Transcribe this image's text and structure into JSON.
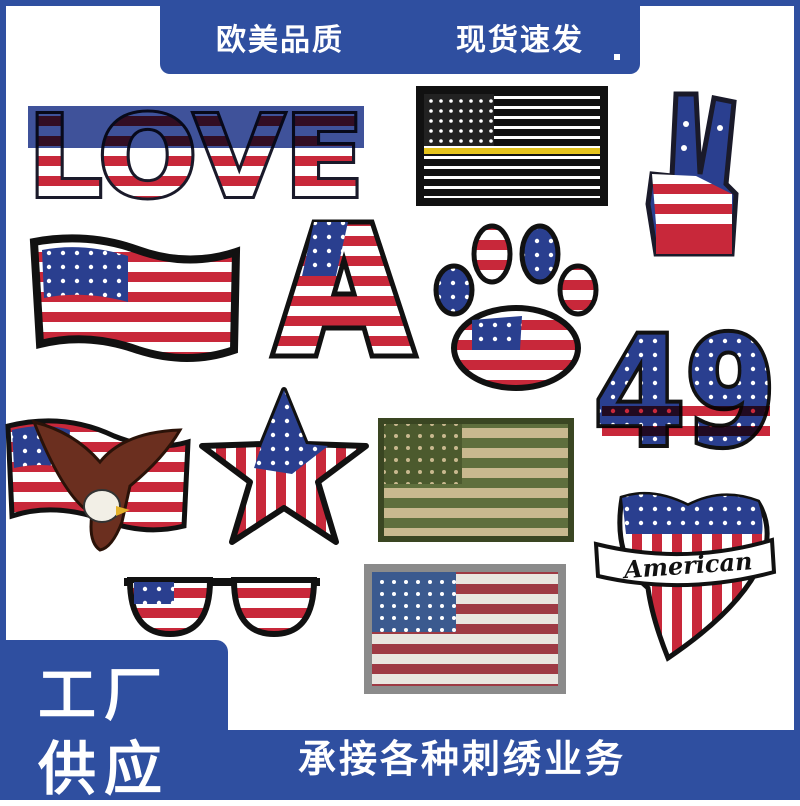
{
  "banner": {
    "left": "欧美品质",
    "right": "现货速发"
  },
  "footer": {
    "tag_line1": "工厂",
    "tag_line2": "供应",
    "service": "承接各种刺绣业务"
  },
  "patches": {
    "love_text": "LOVE",
    "letter_a": "A",
    "number": "49",
    "ribbon": "American"
  },
  "colors": {
    "brand_blue": "#2f4fa0",
    "flag_red": "#c8283a",
    "flag_blue": "#2a3f8f",
    "white": "#ffffff"
  }
}
